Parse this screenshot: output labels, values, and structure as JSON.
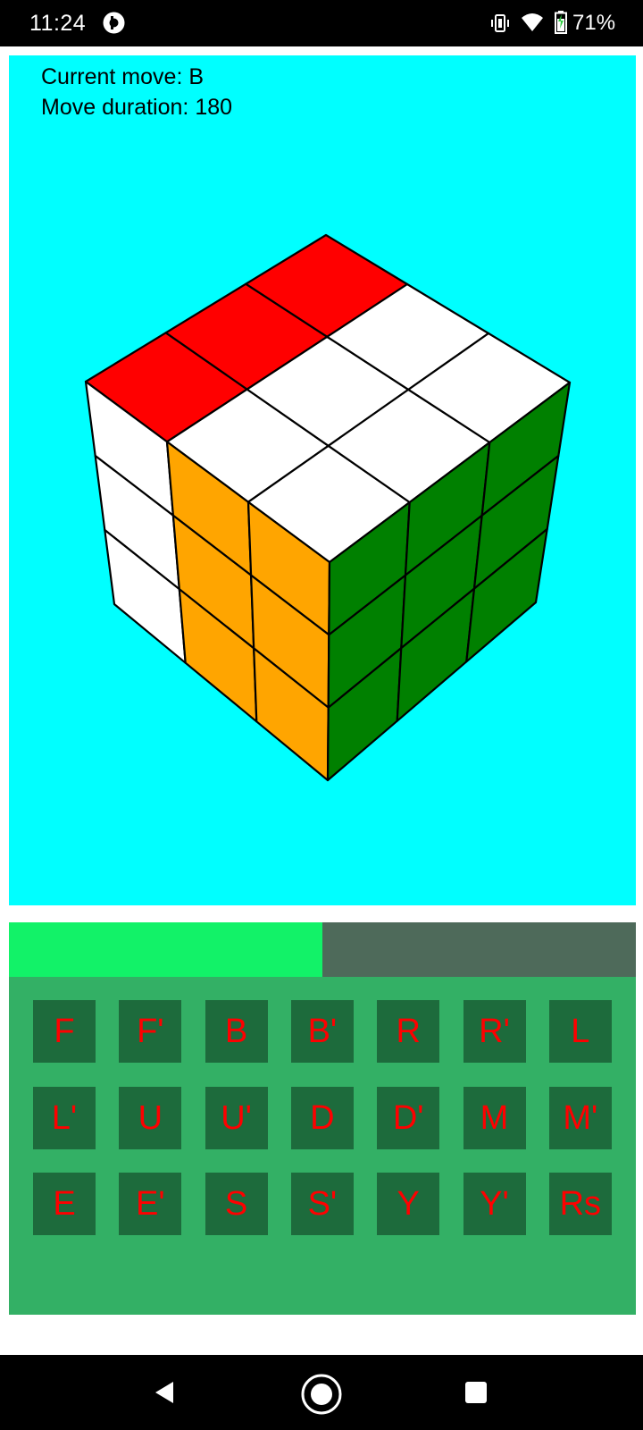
{
  "status_bar": {
    "time": "11:24",
    "battery_percent": "71%",
    "icons": [
      "app-notification-icon",
      "vibrate-icon",
      "wifi-icon",
      "battery-charging-icon"
    ]
  },
  "cube_view": {
    "background_color": "#00ffff",
    "current_move_text": "Current move: B",
    "move_duration_text": "Move duration: 180",
    "faces": {
      "top": {
        "description": "visible top face, rows from back-left edge to front",
        "colors": [
          [
            "red",
            "red",
            "red"
          ],
          [
            "white",
            "white",
            "white"
          ],
          [
            "white",
            "white",
            "white"
          ]
        ]
      },
      "left": {
        "colors": [
          [
            "white",
            "orange",
            "orange"
          ],
          [
            "white",
            "orange",
            "orange"
          ],
          [
            "white",
            "orange",
            "orange"
          ]
        ]
      },
      "right": {
        "colors": [
          [
            "green",
            "green",
            "green"
          ],
          [
            "green",
            "green",
            "green"
          ],
          [
            "green",
            "green",
            "green"
          ]
        ]
      }
    },
    "palette": {
      "red": "#ff0000",
      "white": "#ffffff",
      "orange": "#ffa500",
      "green": "#008000"
    }
  },
  "progress": {
    "fraction": 0.5,
    "fill_color": "#12f268",
    "track_color": "#4e6a5a"
  },
  "controls": {
    "background_color": "#33b065",
    "button_color": "#1d6b3c",
    "label_color": "#ff0000",
    "rows": [
      [
        "F",
        "F'",
        "B",
        "B'",
        "R",
        "R'",
        "L"
      ],
      [
        "L'",
        "U",
        "U'",
        "D",
        "D'",
        "M",
        "M'"
      ],
      [
        "E",
        "E'",
        "S",
        "S'",
        "Y",
        "Y'",
        "Rs"
      ]
    ]
  },
  "nav_bar": {
    "buttons": [
      "back-icon",
      "home-icon",
      "recents-icon"
    ]
  }
}
